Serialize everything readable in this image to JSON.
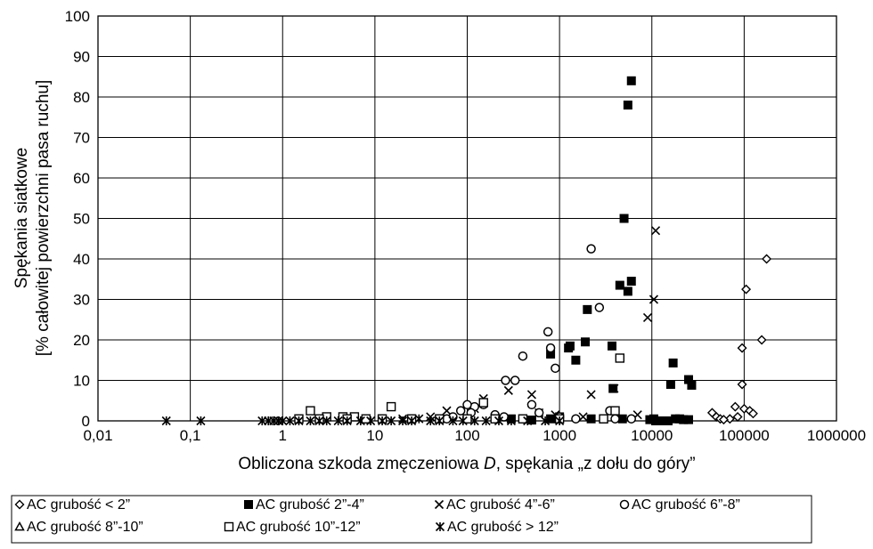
{
  "chart_data": {
    "type": "scatter",
    "xscale": "log",
    "xlim": [
      0.01,
      1000000
    ],
    "ylim": [
      0,
      100
    ],
    "grid": true,
    "legend_placement": "bottom",
    "xlabel_main": "Obliczona szkoda zmęczeniowa ",
    "xlabel_italic": "D",
    "xlabel_rest": ", spękania „z dołu do góry”",
    "ylabel_line1": "Spękania siatkowe",
    "ylabel_line2": "[% całowitej powierzchni pasa ruchu]",
    "x_ticks": [
      {
        "value": 0.01,
        "label": "0,01"
      },
      {
        "value": 0.1,
        "label": "0,1"
      },
      {
        "value": 1,
        "label": "1"
      },
      {
        "value": 10,
        "label": "10"
      },
      {
        "value": 100,
        "label": "100"
      },
      {
        "value": 1000,
        "label": "1000"
      },
      {
        "value": 10000,
        "label": "10000"
      },
      {
        "value": 100000,
        "label": "100000"
      },
      {
        "value": 1000000,
        "label": "1000000"
      }
    ],
    "y_ticks": [
      {
        "value": 0,
        "label": "0"
      },
      {
        "value": 10,
        "label": "10"
      },
      {
        "value": 20,
        "label": "20"
      },
      {
        "value": 30,
        "label": "30"
      },
      {
        "value": 40,
        "label": "40"
      },
      {
        "value": 50,
        "label": "50"
      },
      {
        "value": 60,
        "label": "60"
      },
      {
        "value": 70,
        "label": "70"
      },
      {
        "value": 80,
        "label": "80"
      },
      {
        "value": 90,
        "label": "90"
      },
      {
        "value": 100,
        "label": "100"
      }
    ],
    "series": [
      {
        "name": "AC grubość < 2”",
        "marker": "diamond",
        "points": [
          [
            45000,
            2
          ],
          [
            50000,
            1
          ],
          [
            55000,
            0.5
          ],
          [
            80000,
            3.5
          ],
          [
            95000,
            9
          ],
          [
            95000,
            18
          ],
          [
            105000,
            32.5
          ],
          [
            100000,
            3
          ],
          [
            115000,
            2.5
          ],
          [
            125000,
            1.8
          ],
          [
            155000,
            20
          ],
          [
            175000,
            40
          ],
          [
            70000,
            0.5
          ],
          [
            60000,
            0.3
          ],
          [
            85000,
            1
          ]
        ]
      },
      {
        "name": "AC grubość  2”-4”",
        "marker": "filled-square",
        "points": [
          [
            6000,
            84
          ],
          [
            5500,
            78
          ],
          [
            5000,
            50
          ],
          [
            4500,
            33.5
          ],
          [
            5500,
            32
          ],
          [
            6000,
            34.5
          ],
          [
            1900,
            19.5
          ],
          [
            2000,
            27.5
          ],
          [
            1300,
            18.5
          ],
          [
            1250,
            18
          ],
          [
            1500,
            15
          ],
          [
            800,
            16.5
          ],
          [
            3700,
            18.5
          ],
          [
            3800,
            8
          ],
          [
            4800,
            0.5
          ],
          [
            17000,
            14.3
          ],
          [
            16000,
            9
          ],
          [
            25000,
            10.2
          ],
          [
            27000,
            8.8
          ],
          [
            1000,
            1
          ],
          [
            2200,
            0.5
          ],
          [
            3000,
            0.5
          ],
          [
            9500,
            0.3
          ],
          [
            11000,
            0
          ],
          [
            12000,
            0
          ],
          [
            15000,
            0
          ],
          [
            18000,
            0.5
          ],
          [
            20000,
            0.5
          ],
          [
            22000,
            0.3
          ],
          [
            25000,
            0.3
          ],
          [
            800,
            0.5
          ],
          [
            500,
            0.2
          ],
          [
            300,
            0.5
          ],
          [
            14000,
            0
          ],
          [
            10500,
            0.5
          ]
        ]
      },
      {
        "name": "AC grubość  4”-6”",
        "marker": "x",
        "points": [
          [
            11000,
            47
          ],
          [
            10500,
            30
          ],
          [
            9000,
            25.5
          ],
          [
            3900,
            8
          ],
          [
            2200,
            6.5
          ],
          [
            500,
            6.5
          ],
          [
            280,
            7.5
          ],
          [
            150,
            5.5
          ],
          [
            120,
            3
          ],
          [
            600,
            2
          ],
          [
            900,
            1.5
          ],
          [
            1800,
            1
          ],
          [
            3000,
            0.5
          ],
          [
            7000,
            1.5
          ],
          [
            60,
            2.5
          ],
          [
            40,
            1
          ],
          [
            20,
            0.5
          ],
          [
            8,
            0.3
          ],
          [
            200,
            1
          ],
          [
            400,
            0.5
          ]
        ]
      },
      {
        "name": "AC grubość  6”-8”",
        "marker": "circle",
        "points": [
          [
            2200,
            42.5
          ],
          [
            2700,
            28
          ],
          [
            750,
            22
          ],
          [
            800,
            18
          ],
          [
            900,
            13
          ],
          [
            400,
            16
          ],
          [
            330,
            10
          ],
          [
            260,
            10
          ],
          [
            500,
            4
          ],
          [
            150,
            4
          ],
          [
            120,
            3.5
          ],
          [
            100,
            4
          ],
          [
            85,
            2.5
          ],
          [
            110,
            2
          ],
          [
            200,
            1.5
          ],
          [
            600,
            2
          ],
          [
            1000,
            1
          ],
          [
            1500,
            0.5
          ],
          [
            4000,
            0.5
          ],
          [
            6000,
            0.5
          ],
          [
            250,
            1
          ],
          [
            70,
            1
          ],
          [
            60,
            0.5
          ],
          [
            3500,
            2.5
          ]
        ]
      },
      {
        "name": "AC grubość  8”-10”",
        "marker": "triangle",
        "points": []
      },
      {
        "name": "AC grubość 10”-12”",
        "marker": "square",
        "points": [
          [
            2,
            2.5
          ],
          [
            3,
            1
          ],
          [
            4.5,
            1
          ],
          [
            6,
            1
          ],
          [
            15,
            3.5
          ],
          [
            150,
            4.5
          ],
          [
            4000,
            2.5
          ],
          [
            4500,
            15.5
          ],
          [
            1.5,
            0.5
          ],
          [
            2.5,
            0.5
          ],
          [
            5,
            0.5
          ],
          [
            8,
            0.5
          ],
          [
            12,
            0.5
          ],
          [
            25,
            0.5
          ],
          [
            50,
            0.5
          ],
          [
            100,
            0.5
          ],
          [
            200,
            0.5
          ],
          [
            1000,
            0.5
          ],
          [
            3000,
            0.5
          ],
          [
            400,
            0.5
          ]
        ]
      },
      {
        "name": "AC grubość > 12”",
        "marker": "star",
        "points": [
          [
            0.055,
            0
          ],
          [
            0.13,
            0
          ],
          [
            0.6,
            0
          ],
          [
            0.7,
            0
          ],
          [
            0.8,
            0
          ],
          [
            0.9,
            0
          ],
          [
            1,
            0
          ],
          [
            1.2,
            0
          ],
          [
            1.5,
            0
          ],
          [
            2,
            0
          ],
          [
            2.5,
            0
          ],
          [
            3,
            0
          ],
          [
            4,
            0
          ],
          [
            5,
            0
          ],
          [
            7,
            0
          ],
          [
            9,
            0
          ],
          [
            12,
            0
          ],
          [
            15,
            0
          ],
          [
            20,
            0
          ],
          [
            25,
            0
          ],
          [
            30,
            0.5
          ],
          [
            40,
            0
          ],
          [
            50,
            0
          ],
          [
            70,
            0
          ],
          [
            90,
            0
          ],
          [
            120,
            0
          ],
          [
            160,
            0
          ],
          [
            220,
            0
          ],
          [
            300,
            0
          ],
          [
            450,
            0
          ],
          [
            700,
            0
          ],
          [
            1000,
            0
          ]
        ]
      }
    ]
  }
}
